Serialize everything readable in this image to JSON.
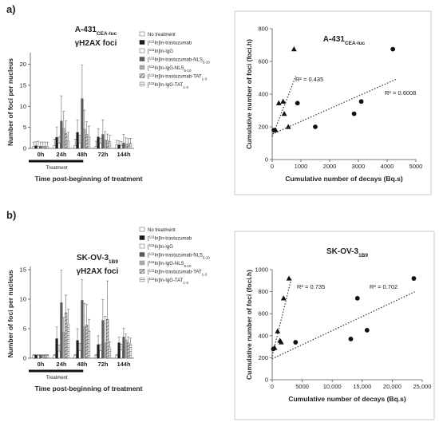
{
  "panels": {
    "a": {
      "tag": "a)",
      "bar": {
        "title": "A-431",
        "title_sub": "CEA-luc",
        "subtitle": "γH2AX foci",
        "ylabel": "Number of foci per nucleus",
        "xlabel": "Time post-beginning of treatment",
        "treatment_label": "Treatment",
        "legend": [
          {
            "pre": "",
            "sup": "",
            "name": "No treatment",
            "sub": ""
          },
          {
            "pre": "[",
            "sup": "111",
            "name": "In]In-trastuzumab",
            "sub": ""
          },
          {
            "pre": "[",
            "sup": "111",
            "name": "In]In-IgG",
            "sub": ""
          },
          {
            "pre": "[",
            "sup": "111",
            "name": "In]In-trastuzumab-NLS",
            "sub": "5-10"
          },
          {
            "pre": "[",
            "sup": "111",
            "name": "In]In-IgG-NLS",
            "sub": "5-10"
          },
          {
            "pre": "[",
            "sup": "111",
            "name": "In]In-trastuzumab-TAT",
            "sub": "1-3"
          },
          {
            "pre": "[",
            "sup": "111",
            "name": "In]In-IgG-TAT",
            "sub": "1-3"
          }
        ]
      },
      "scatter": {
        "title": "A-431",
        "title_sub": "CEA-luc",
        "ylabel": "Cumulative number of foci (foci.h)",
        "xlabel": "Cumulative number of decays (Bq.s)",
        "r2_tri": "R² = 0.435",
        "r2_dot": "R² = 0.6008"
      }
    },
    "b": {
      "tag": "b)",
      "bar": {
        "title": "SK-OV-3",
        "title_sub": "1B9",
        "subtitle": "γH2AX foci",
        "ylabel": "Number of foci per nucleus",
        "xlabel": "Time post-beginning of treatment",
        "treatment_label": "Treatment",
        "legend": [
          {
            "pre": "",
            "sup": "",
            "name": "No treatment",
            "sub": ""
          },
          {
            "pre": "[",
            "sup": "111",
            "name": "In]In-trastuzumab",
            "sub": ""
          },
          {
            "pre": "[",
            "sup": "111",
            "name": "In]In-IgG",
            "sub": ""
          },
          {
            "pre": "[",
            "sup": "111",
            "name": "In]In-trastuzumab-NLS",
            "sub": "5-10"
          },
          {
            "pre": "[",
            "sup": "111",
            "name": "In]In-IgG-NLS",
            "sub": "5-10"
          },
          {
            "pre": "[",
            "sup": "111",
            "name": "In]In-trastuzumab-TAT",
            "sub": "1-3"
          },
          {
            "pre": "[",
            "sup": "111",
            "name": "In]In-IgG-TAT",
            "sub": "1-3"
          }
        ]
      },
      "scatter": {
        "title": "SK-OV-3",
        "title_sub": "1B9",
        "ylabel": "Cumulative number of foci (foci.h)",
        "xlabel": "Cumulative number of decays (Bq.s)",
        "r2_tri": "R² = 0.735",
        "r2_dot": "R² = 0.702"
      }
    }
  },
  "series_styles": [
    {
      "fill": "#ffffff",
      "stroke": "#555555",
      "pattern": "none"
    },
    {
      "fill": "#1a1a1a",
      "stroke": "#1a1a1a",
      "pattern": "none"
    },
    {
      "fill": "#ffffff",
      "stroke": "#555555",
      "pattern": "none"
    },
    {
      "fill": "#5a5a5a",
      "stroke": "#5a5a5a",
      "pattern": "none"
    },
    {
      "fill": "#a8a8a8",
      "stroke": "#888888",
      "pattern": "none"
    },
    {
      "fill": "#8c8c8c",
      "stroke": "#555555",
      "pattern": "hatch"
    },
    {
      "fill": "#f2f2f2",
      "stroke": "#888888",
      "pattern": "hlines"
    }
  ],
  "chart_data": [
    {
      "type": "bar",
      "categories": [
        "0h",
        "24h",
        "48h",
        "72h",
        "144h"
      ],
      "ylim": [
        0,
        22
      ],
      "yticks": [
        0,
        5,
        10,
        15,
        20
      ],
      "series": [
        {
          "name": "No treatment",
          "values": [
            0.5,
            0.7,
            0.7,
            0.5,
            0.9
          ],
          "errors": [
            1.0,
            1.5,
            1.5,
            1.2,
            1.0
          ]
        },
        {
          "name": "[111In]In-trastuzumab",
          "values": [
            0.6,
            2.6,
            3.8,
            2.7,
            0.8
          ],
          "errors": [
            1.0,
            2.5,
            3.0,
            2.0,
            1.0
          ]
        },
        {
          "name": "[111In]In-IgG",
          "values": [
            0.5,
            1.2,
            1.3,
            1.2,
            0.6
          ],
          "errors": [
            1.2,
            1.5,
            1.8,
            1.2,
            1.0
          ]
        },
        {
          "name": "[111In]In-trastuzumab-NLS5-10",
          "values": [
            0.5,
            6.5,
            11.8,
            3.3,
            1.3
          ],
          "errors": [
            1.0,
            6.0,
            8.0,
            3.5,
            2.0
          ]
        },
        {
          "name": "[111In]In-IgG-NLS5-10",
          "values": [
            0.5,
            4.8,
            4.6,
            2.0,
            1.0
          ],
          "errors": [
            1.0,
            4.0,
            4.5,
            2.0,
            1.5
          ]
        },
        {
          "name": "[111In]In-trastuzumab-TAT1-3",
          "values": [
            0.5,
            3.5,
            3.3,
            1.9,
            1.1
          ],
          "errors": [
            1.0,
            3.0,
            3.0,
            1.5,
            1.2
          ]
        },
        {
          "name": "[111In]In-IgG-TAT1-3",
          "values": [
            0.5,
            1.8,
            2.8,
            1.6,
            1.2
          ],
          "errors": [
            1.0,
            2.0,
            2.5,
            1.5,
            1.2
          ]
        }
      ],
      "title": "A-431CEA-luc γH2AX foci",
      "ylabel": "Number of foci per nucleus",
      "xlabel": "Time post-beginning of treatment"
    },
    {
      "type": "scatter",
      "xlim": [
        0,
        5000
      ],
      "ylim": [
        0,
        800
      ],
      "xticks": [
        0,
        1000,
        2000,
        3000,
        4000,
        5000
      ],
      "yticks": [
        0,
        200,
        400,
        600,
        800
      ],
      "series": [
        {
          "marker": "triangle",
          "points": [
            [
              120,
              180
            ],
            [
              230,
              345
            ],
            [
              420,
              280
            ],
            [
              380,
              355
            ],
            [
              560,
              200
            ],
            [
              760,
              675
            ]
          ],
          "fit": [
            [
              0,
              140
            ],
            [
              820,
              510
            ]
          ],
          "r2": 0.435
        },
        {
          "marker": "circle",
          "points": [
            [
              60,
              180
            ],
            [
              880,
              345
            ],
            [
              1500,
              200
            ],
            [
              2850,
              280
            ],
            [
              3100,
              355
            ],
            [
              4200,
              675
            ]
          ],
          "fit": [
            [
              0,
              155
            ],
            [
              4300,
              490
            ]
          ],
          "r2": 0.6008
        }
      ],
      "title": "A-431CEA-luc",
      "ylabel": "Cumulative number of foci (foci.h)",
      "xlabel": "Cumulative number of decays (Bq.s)"
    },
    {
      "type": "bar",
      "categories": [
        "0h",
        "24h",
        "48h",
        "72h",
        "144h"
      ],
      "ylim": [
        0,
        15
      ],
      "yticks": [
        0,
        5,
        10,
        15
      ],
      "series": [
        {
          "name": "No treatment",
          "values": [
            0.5,
            0.5,
            0.5,
            0.5,
            0.5
          ],
          "errors": [
            0.1,
            0.1,
            0.1,
            0.1,
            0.1
          ]
        },
        {
          "name": "[111In]In-trastuzumab",
          "values": [
            0.5,
            3.3,
            3.0,
            2.3,
            2.6
          ],
          "errors": [
            0.1,
            2.0,
            2.0,
            1.5,
            1.0
          ]
        },
        {
          "name": "[111In]In-IgG",
          "values": [
            0.5,
            1.2,
            1.3,
            1.3,
            1.4
          ],
          "errors": [
            0.1,
            1.0,
            1.2,
            1.0,
            1.0
          ]
        },
        {
          "name": "[111In]In-trastuzumab-NLS5-10",
          "values": [
            0.5,
            9.4,
            9.8,
            6.4,
            3.6
          ],
          "errors": [
            0.1,
            5.5,
            3.5,
            3.5,
            1.5
          ]
        },
        {
          "name": "[111In]In-IgG-NLS5-10",
          "values": [
            0.5,
            4.4,
            5.3,
            2.6,
            3.1
          ],
          "errors": [
            0.1,
            2.5,
            4.0,
            4.5,
            1.0
          ]
        },
        {
          "name": "[111In]In-trastuzumab-TAT1-3",
          "values": [
            0.5,
            7.7,
            5.6,
            6.6,
            2.6
          ],
          "errors": [
            0.1,
            3.0,
            3.5,
            6.5,
            1.0
          ]
        },
        {
          "name": "[111In]In-IgG-TAT1-3",
          "values": [
            0.5,
            5.8,
            4.6,
            1.8,
            2.4
          ],
          "errors": [
            0.1,
            2.5,
            2.0,
            1.0,
            1.0
          ]
        }
      ],
      "title": "SK-OV-31B9 γH2AX foci",
      "ylabel": "Number of foci per nucleus",
      "xlabel": "Time post-beginning of treatment"
    },
    {
      "type": "scatter",
      "xlim": [
        0,
        25000
      ],
      "ylim": [
        0,
        1000
      ],
      "xticks": [
        0,
        5000,
        10000,
        15000,
        20000,
        25000
      ],
      "yticks": [
        0,
        200,
        400,
        600,
        800,
        1000
      ],
      "series": [
        {
          "marker": "triangle",
          "points": [
            [
              400,
              290
            ],
            [
              900,
              440
            ],
            [
              1300,
              355
            ],
            [
              1500,
              340
            ],
            [
              1900,
              740
            ],
            [
              2800,
              920
            ]
          ],
          "fit": [
            [
              0,
              215
            ],
            [
              3200,
              920
            ]
          ],
          "r2": 0.735
        },
        {
          "marker": "circle",
          "points": [
            [
              200,
              280
            ],
            [
              3900,
              340
            ],
            [
              13100,
              370
            ],
            [
              14200,
              740
            ],
            [
              15800,
              450
            ],
            [
              23600,
              920
            ]
          ],
          "fit": [
            [
              0,
              190
            ],
            [
              24000,
              805
            ]
          ],
          "r2": 0.702
        }
      ],
      "title": "SK-OV-31B9",
      "ylabel": "Cumulative number of foci (foci.h)",
      "xlabel": "Cumulative number of decays (Bq.s)"
    }
  ]
}
